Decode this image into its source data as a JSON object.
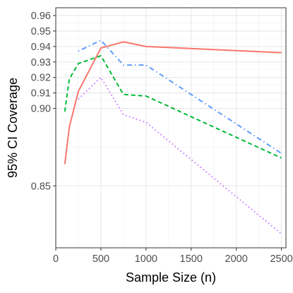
{
  "chart_data": {
    "type": "line",
    "xlabel": "Sample Size (n)",
    "ylabel": "95% CI Coverage",
    "xlim": [
      0,
      2550
    ],
    "ylim": [
      0.81,
      0.965
    ],
    "x_ticks": [
      0,
      500,
      1000,
      1500,
      2000,
      2500
    ],
    "x_tick_labels": [
      "0",
      "500",
      "1000",
      "1500",
      "2000",
      "2500"
    ],
    "y_ticks": [
      0.85,
      0.9,
      0.91,
      0.92,
      0.93,
      0.94,
      0.95,
      0.96
    ],
    "y_tick_labels": [
      "0.85",
      "0.90",
      "0.91",
      "0.92",
      "0.93",
      "0.94",
      "0.95",
      "0.96"
    ],
    "grid": true,
    "legend": "none",
    "series": [
      {
        "color": "#F8766D",
        "dash": "solid",
        "x": [
          100,
          150,
          250,
          500,
          750,
          1000,
          2500
        ],
        "y": [
          0.864,
          0.888,
          0.911,
          0.939,
          0.943,
          0.94,
          0.936
        ]
      },
      {
        "color": "#00BA38",
        "dash": "dashed",
        "x": [
          100,
          150,
          250,
          500,
          750,
          1000,
          2500
        ],
        "y": [
          0.898,
          0.919,
          0.929,
          0.934,
          0.909,
          0.908,
          0.868
        ]
      },
      {
        "color": "#619CFF",
        "dash": "dotdash",
        "x": [
          250,
          500,
          750,
          1000,
          2500
        ],
        "y": [
          0.937,
          0.944,
          0.928,
          0.928,
          0.871
        ]
      },
      {
        "color": "#C77CFF",
        "dash": "dotted",
        "x": [
          250,
          500,
          750,
          1000,
          2500
        ],
        "y": [
          0.906,
          0.92,
          0.896,
          0.891,
          0.819
        ]
      }
    ]
  }
}
